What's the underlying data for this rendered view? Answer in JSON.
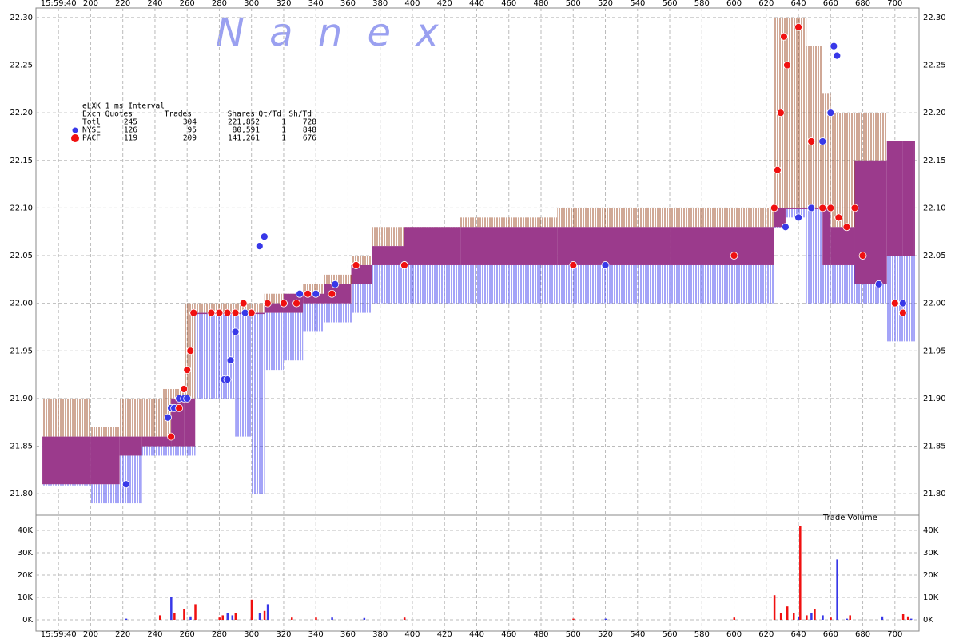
{
  "chart_data": {
    "type": "nbbo",
    "watermark": "N a n e x",
    "volume_label": "Trade Volume",
    "xlim": [
      166,
      715
    ],
    "xticks": [
      {
        "value": 180,
        "label": "15:59:40"
      },
      200,
      220,
      240,
      260,
      280,
      300,
      320,
      340,
      360,
      380,
      400,
      420,
      440,
      460,
      480,
      500,
      520,
      540,
      560,
      580,
      600,
      620,
      640,
      660,
      680,
      700
    ],
    "ylim": [
      21.78,
      22.31
    ],
    "yticks": [
      {
        "value": 21.8,
        "label": "21.80"
      },
      21.85,
      {
        "value": 21.9,
        "label": "21.90"
      },
      21.95,
      {
        "value": 22.0,
        "label": "22.00"
      },
      22.05,
      {
        "value": 22.1,
        "label": "22.10"
      },
      22.15,
      {
        "value": 22.2,
        "label": "22.20"
      },
      22.25,
      {
        "value": 22.3,
        "label": "22.30"
      }
    ],
    "y2lim": [
      -5000,
      45000
    ],
    "y2ticks": [
      {
        "value": 0,
        "label": "0K"
      },
      {
        "value": 10000,
        "label": "10K"
      },
      {
        "value": 20000,
        "label": "20K"
      },
      {
        "value": 30000,
        "label": "30K"
      },
      {
        "value": 40000,
        "label": "40K"
      }
    ],
    "grid": true,
    "quotes": {
      "x": [
        170,
        200,
        218,
        232,
        245,
        250,
        258,
        265,
        290,
        300,
        308,
        320,
        332,
        345,
        362,
        375,
        395,
        430,
        490,
        560,
        625,
        632,
        645,
        655,
        660,
        675,
        695,
        705,
        712
      ],
      "bid": [
        21.81,
        21.81,
        21.84,
        21.85,
        21.85,
        21.85,
        21.85,
        21.99,
        21.99,
        21.99,
        21.99,
        21.99,
        22.0,
        22.0,
        22.02,
        22.04,
        22.04,
        22.04,
        22.04,
        22.04,
        22.08,
        22.1,
        22.1,
        22.04,
        22.04,
        22.02,
        22.05,
        22.05,
        22.05
      ],
      "ask": [
        21.86,
        21.86,
        21.86,
        21.86,
        21.86,
        21.9,
        21.9,
        21.99,
        21.99,
        21.99,
        22.0,
        22.01,
        22.01,
        22.02,
        22.04,
        22.06,
        22.08,
        22.08,
        22.08,
        22.08,
        22.1,
        22.1,
        22.1,
        22.1,
        22.08,
        22.15,
        22.17,
        22.17,
        22.17
      ],
      "lowbid": [
        21.81,
        21.79,
        21.79,
        21.84,
        21.84,
        21.84,
        21.84,
        21.9,
        21.86,
        21.8,
        21.93,
        21.94,
        21.97,
        21.98,
        21.99,
        22.0,
        22.0,
        22.0,
        22.0,
        22.0,
        22.08,
        22.09,
        22.0,
        22.0,
        22.0,
        22.0,
        21.96,
        21.96,
        21.96
      ],
      "highask": [
        21.9,
        21.87,
        21.9,
        21.9,
        21.91,
        21.91,
        22.0,
        22.0,
        22.0,
        22.0,
        22.01,
        22.01,
        22.02,
        22.03,
        22.05,
        22.08,
        22.08,
        22.09,
        22.1,
        22.1,
        22.3,
        22.3,
        22.27,
        22.22,
        22.2,
        22.2,
        22.17,
        22.17,
        22.17
      ],
      "colors": {
        "bid": "#4848f0",
        "spread": "#9b3a8c",
        "ask": "#a0522d"
      }
    },
    "series": [
      {
        "name": "NYSE",
        "color": "#3838e8",
        "x": [
          222,
          248,
          250,
          252,
          255,
          258,
          260,
          283,
          285,
          287,
          290,
          296,
          300,
          305,
          308,
          320,
          330,
          340,
          352,
          365,
          395,
          520,
          632,
          640,
          648,
          655,
          660,
          662,
          664,
          690,
          705
        ],
        "values": [
          21.81,
          21.88,
          21.89,
          21.89,
          21.9,
          21.9,
          21.9,
          21.92,
          21.92,
          21.94,
          21.97,
          21.99,
          21.99,
          22.06,
          22.07,
          22.0,
          22.01,
          22.01,
          22.02,
          22.04,
          22.04,
          22.04,
          22.08,
          22.09,
          22.1,
          22.17,
          22.2,
          22.27,
          22.26,
          22.02,
          22.0
        ]
      },
      {
        "name": "PACF",
        "color": "#f01010",
        "x": [
          250,
          255,
          258,
          260,
          262,
          264,
          275,
          280,
          285,
          290,
          295,
          300,
          310,
          320,
          328,
          335,
          350,
          365,
          395,
          500,
          600,
          625,
          627,
          629,
          631,
          633,
          640,
          648,
          655,
          660,
          665,
          670,
          675,
          680,
          700,
          705
        ],
        "values": [
          21.86,
          21.89,
          21.91,
          21.93,
          21.95,
          21.99,
          21.99,
          21.99,
          21.99,
          21.99,
          22.0,
          21.99,
          22.0,
          22.0,
          22.0,
          22.01,
          22.01,
          22.04,
          22.04,
          22.04,
          22.05,
          22.1,
          22.14,
          22.2,
          22.28,
          22.25,
          22.29,
          22.17,
          22.1,
          22.1,
          22.09,
          22.08,
          22.1,
          22.05,
          22.0,
          21.99
        ]
      }
    ],
    "volume": [
      {
        "name": "NYSE",
        "color": "#3838e8",
        "x": [
          222,
          250,
          262,
          285,
          288,
          300,
          305,
          310,
          350,
          370,
          395,
          520,
          640,
          648,
          655,
          664,
          670,
          692,
          710
        ],
        "values": [
          500,
          10000,
          1500,
          3000,
          2000,
          1000,
          3000,
          7000,
          1000,
          800,
          500,
          500,
          1500,
          3000,
          2000,
          27000,
          500,
          1500,
          500
        ]
      },
      {
        "name": "PACF",
        "color": "#f01010",
        "x": [
          243,
          252,
          258,
          265,
          280,
          282,
          290,
          300,
          308,
          325,
          340,
          395,
          500,
          600,
          625,
          629,
          633,
          637,
          641,
          645,
          650,
          660,
          672,
          705,
          708
        ],
        "values": [
          2000,
          3000,
          5000,
          7000,
          1000,
          2000,
          3000,
          9000,
          4000,
          1000,
          1000,
          1000,
          500,
          1000,
          11000,
          3000,
          6000,
          3000,
          42000,
          2000,
          5000,
          1000,
          2000,
          2500,
          1500
        ]
      }
    ],
    "stats": {
      "title": "eLXK 1 ms Interval",
      "header": [
        "Exch",
        "Quotes",
        "Trades",
        "Shares",
        "Qt/Td",
        "Sh/Td"
      ],
      "rows": [
        [
          "Totl",
          245,
          304,
          "221,852",
          1,
          728
        ],
        [
          "NYSE",
          126,
          95,
          "80,591",
          1,
          848
        ],
        [
          "PACF",
          119,
          209,
          "141,261",
          1,
          676
        ]
      ]
    }
  }
}
